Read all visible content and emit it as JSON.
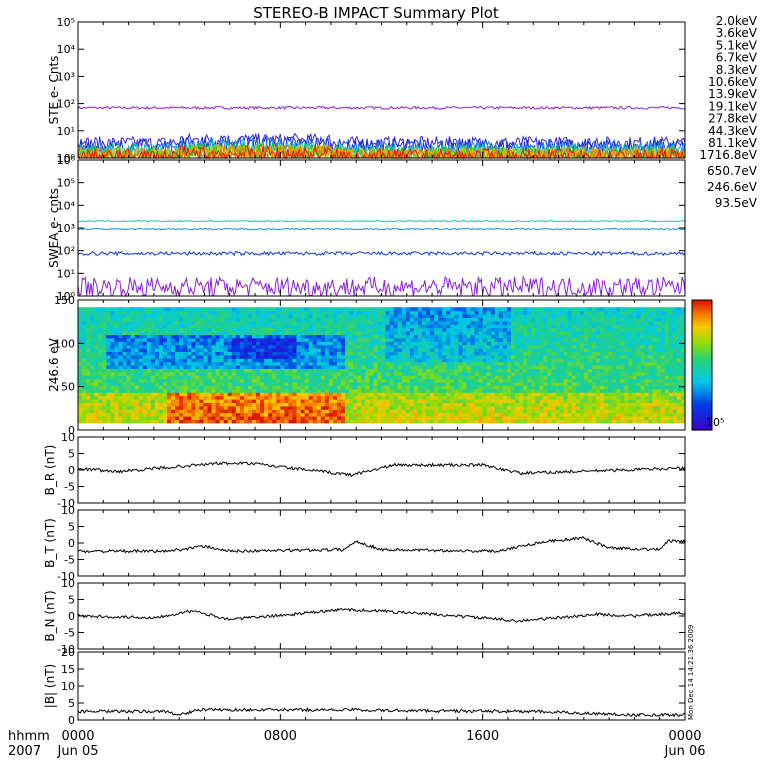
{
  "title": "STEREO-B IMPACT Summary Plot",
  "footer": {
    "time_label": "hhmm",
    "year_label": "2007"
  },
  "side_stamp": "Mon Dec 14 14:21:36 2009",
  "colors": {
    "ste_series": [
      "#8b1fd6",
      "#3b25c8",
      "#1434d8",
      "#1a8fe0",
      "#18c7c7",
      "#10d07a",
      "#2ad400",
      "#b8d600",
      "#f2b000",
      "#f07800",
      "#e81a00"
    ],
    "swea_series": [
      "#8b1fd6",
      "#1434d8",
      "#1a8fe0",
      "#18c7c7"
    ],
    "line": "#000000"
  },
  "chart_data": [
    {
      "type": "line",
      "ylabel": "STE e- Cnts",
      "yscale": "log",
      "ylim": [
        1,
        100000
      ],
      "yticks": [
        "10⁰",
        "10¹",
        "10²",
        "10³",
        "10⁴",
        "10⁵"
      ],
      "series": [
        {
          "name": "2.0keV",
          "level": 70,
          "noise": 0.05
        },
        {
          "name": "3.6keV",
          "level": 3.5,
          "noise": 0.25
        },
        {
          "name": "5.1keV",
          "level": 2.6,
          "noise": 0.3
        },
        {
          "name": "6.7keV",
          "level": 2.0,
          "noise": 0.3
        },
        {
          "name": "8.3keV",
          "level": 1.6,
          "noise": 0.3
        },
        {
          "name": "10.6keV",
          "level": 1.4,
          "noise": 0.3
        },
        {
          "name": "13.9keV",
          "level": 1.3,
          "noise": 0.3
        },
        {
          "name": "19.1keV",
          "level": 1.25,
          "noise": 0.3
        },
        {
          "name": "27.8keV",
          "level": 1.2,
          "noise": 0.3
        },
        {
          "name": "44.3keV",
          "level": 1.15,
          "noise": 0.3
        },
        {
          "name": "81.1keV",
          "level": 1.1,
          "noise": 0.3
        }
      ]
    },
    {
      "type": "line",
      "ylabel": "SWEA e- cnts",
      "yscale": "log",
      "ylim": [
        1,
        1000000
      ],
      "yticks": [
        "10⁰",
        "10¹",
        "10²",
        "10³",
        "10⁴",
        "10⁵",
        "10⁶"
      ],
      "series": [
        {
          "name": "1716.8eV",
          "level": 2.5,
          "noise": 0.45
        },
        {
          "name": "650.7eV",
          "level": 75,
          "noise": 0.08
        },
        {
          "name": "246.6eV",
          "level": 900,
          "noise": 0.03
        },
        {
          "name": "93.5eV",
          "level": 2000,
          "noise": 0.03
        }
      ]
    },
    {
      "type": "heatmap",
      "ylabel": "246.6 eV",
      "ylim": [
        0,
        180
      ],
      "yticks": [
        "0",
        "50",
        "100",
        "150"
      ],
      "colorbar_label": "10⁵"
    },
    {
      "type": "line",
      "ylabel": "B_R (nT)",
      "ylim": [
        -10,
        10
      ],
      "yticks": [
        "-10",
        "-5",
        "0",
        "5",
        "10"
      ],
      "segments": [
        [
          0,
          0.5
        ],
        [
          1.5,
          -0.5
        ],
        [
          5.5,
          2.0
        ],
        [
          6.8,
          2.0
        ],
        [
          10.8,
          -1.5
        ],
        [
          12.5,
          1.5
        ],
        [
          16.0,
          1.5
        ],
        [
          17.5,
          -1.0
        ],
        [
          23.5,
          0.5
        ],
        [
          24.0,
          0.5
        ]
      ]
    },
    {
      "type": "line",
      "ylabel": "B_T (nT)",
      "ylim": [
        -10,
        10
      ],
      "yticks": [
        "-10",
        "-5",
        "0",
        "5",
        "10"
      ],
      "segments": [
        [
          0,
          -2.5
        ],
        [
          3.5,
          -2.5
        ],
        [
          5.0,
          -1.0
        ],
        [
          6.0,
          -2.5
        ],
        [
          10.5,
          -2.0
        ],
        [
          11.0,
          0.5
        ],
        [
          12.0,
          -2.0
        ],
        [
          16.5,
          -2.5
        ],
        [
          18.5,
          0.5
        ],
        [
          20.0,
          1.5
        ],
        [
          21.0,
          -1.5
        ],
        [
          23.0,
          -2.0
        ],
        [
          23.3,
          0.5
        ],
        [
          24.0,
          0.5
        ]
      ]
    },
    {
      "type": "line",
      "ylabel": "B_N (nT)",
      "ylim": [
        -10,
        10
      ],
      "yticks": [
        "-10",
        "-5",
        "0",
        "5",
        "10"
      ],
      "segments": [
        [
          0,
          0
        ],
        [
          3.0,
          -0.5
        ],
        [
          4.5,
          1.5
        ],
        [
          6.0,
          -1.0
        ],
        [
          8.5,
          0.5
        ],
        [
          10.5,
          2.0
        ],
        [
          12.0,
          1.5
        ],
        [
          15.0,
          0.0
        ],
        [
          17.5,
          -1.5
        ],
        [
          20.5,
          0.5
        ],
        [
          22.0,
          0.0
        ],
        [
          24.0,
          1.0
        ]
      ]
    },
    {
      "type": "line",
      "ylabel": "|B| (nT)",
      "ylim": [
        0,
        20
      ],
      "yticks": [
        "0",
        "5",
        "10",
        "15",
        "20"
      ],
      "segments": [
        [
          0,
          2.5
        ],
        [
          3.5,
          2.5
        ],
        [
          4.0,
          1.5
        ],
        [
          4.8,
          3.0
        ],
        [
          11.0,
          3.0
        ],
        [
          12.0,
          2.8
        ],
        [
          18.0,
          2.5
        ],
        [
          22.0,
          1.5
        ],
        [
          24.0,
          1.5
        ]
      ]
    }
  ],
  "x_axis": {
    "ticks": [
      {
        "value": 0,
        "label": "0000",
        "sublabel": "Jun 05"
      },
      {
        "value": 8,
        "label": "0800",
        "sublabel": ""
      },
      {
        "value": 16,
        "label": "1600",
        "sublabel": ""
      },
      {
        "value": 24,
        "label": "0000",
        "sublabel": "Jun 06"
      }
    ],
    "range": [
      0,
      24
    ]
  }
}
